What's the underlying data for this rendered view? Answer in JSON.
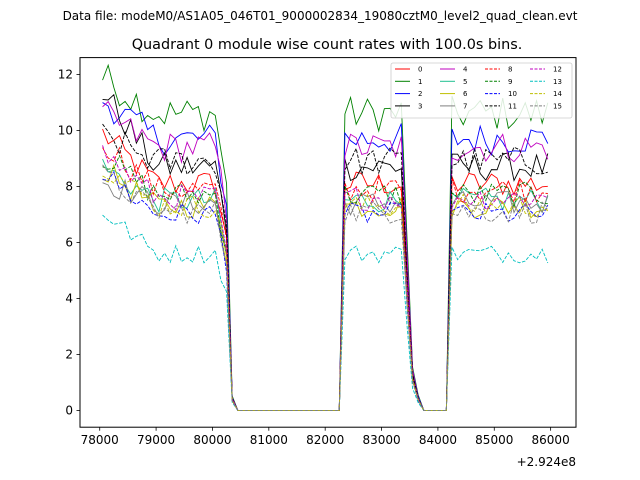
{
  "chart_data": {
    "type": "line",
    "suptitle": "Data file: modeM0/AS1A05_046T01_9000002834_19080cztM0_level2_quad_clean.evt",
    "title": "Quadrant 0 module wise count rates with 100.0s bins.",
    "xlabel": "",
    "ylabel": "",
    "x_offset_label": "+2.924e8",
    "xlim": [
      77650,
      86450
    ],
    "ylim": [
      -0.6,
      12.6
    ],
    "xticks": [
      78000,
      79000,
      80000,
      81000,
      82000,
      83000,
      84000,
      85000,
      86000
    ],
    "xtick_labels": [
      "78000",
      "79000",
      "80000",
      "81000",
      "82000",
      "83000",
      "84000",
      "85000",
      "86000"
    ],
    "yticks": [
      0,
      2,
      4,
      6,
      8,
      10,
      12
    ],
    "ytick_labels": [
      "0",
      "2",
      "4",
      "6",
      "8",
      "10",
      "12"
    ],
    "segments": [
      {
        "start": 78050,
        "n": 22
      },
      {
        "start": 80250,
        "n": 21
      },
      {
        "start": 82350,
        "n": 12
      },
      {
        "start": 83550,
        "n": 7
      },
      {
        "start": 84250,
        "n": 18
      }
    ],
    "legend_position": "upper right",
    "series": [
      {
        "name": "0",
        "color": "#ff0000",
        "dash": "solid",
        "base": 8.1,
        "start": 9.9
      },
      {
        "name": "1",
        "color": "#008000",
        "dash": "solid",
        "base": 10.6,
        "start": 11.9
      },
      {
        "name": "2",
        "color": "#0000ff",
        "dash": "solid",
        "base": 9.7,
        "start": 11.1
      },
      {
        "name": "3",
        "color": "#000000",
        "dash": "solid",
        "base": 8.7,
        "start": 11.4
      },
      {
        "name": "4",
        "color": "#bf00bf",
        "dash": "solid",
        "base": 9.4,
        "start": 10.6
      },
      {
        "name": "5",
        "color": "#1fbf90",
        "dash": "solid",
        "base": 7.5,
        "start": 8.7
      },
      {
        "name": "6",
        "color": "#bfbf00",
        "dash": "solid",
        "base": 7.3,
        "start": 8.6
      },
      {
        "name": "7",
        "color": "#808080",
        "dash": "solid",
        "base": 7.4,
        "start": 8.2
      },
      {
        "name": "8",
        "color": "#ff0000",
        "dash": "dashed",
        "base": 7.9,
        "start": 9.6
      },
      {
        "name": "9",
        "color": "#008000",
        "dash": "dashed",
        "base": 7.7,
        "start": 9.1
      },
      {
        "name": "10",
        "color": "#0000ff",
        "dash": "dashed",
        "base": 7.0,
        "start": 8.5
      },
      {
        "name": "11",
        "color": "#000000",
        "dash": "dashed",
        "base": 8.9,
        "start": 9.8
      },
      {
        "name": "12",
        "color": "#bf00bf",
        "dash": "dashed",
        "base": 7.6,
        "start": 9.2
      },
      {
        "name": "13",
        "color": "#00bfbf",
        "dash": "dashed",
        "base": 5.6,
        "start": 7.1
      },
      {
        "name": "14",
        "color": "#bfbf00",
        "dash": "dashed",
        "base": 7.3,
        "start": 8.8
      },
      {
        "name": "15",
        "color": "#808080",
        "dash": "dashed",
        "base": 7.1,
        "start": 8.4
      }
    ]
  }
}
